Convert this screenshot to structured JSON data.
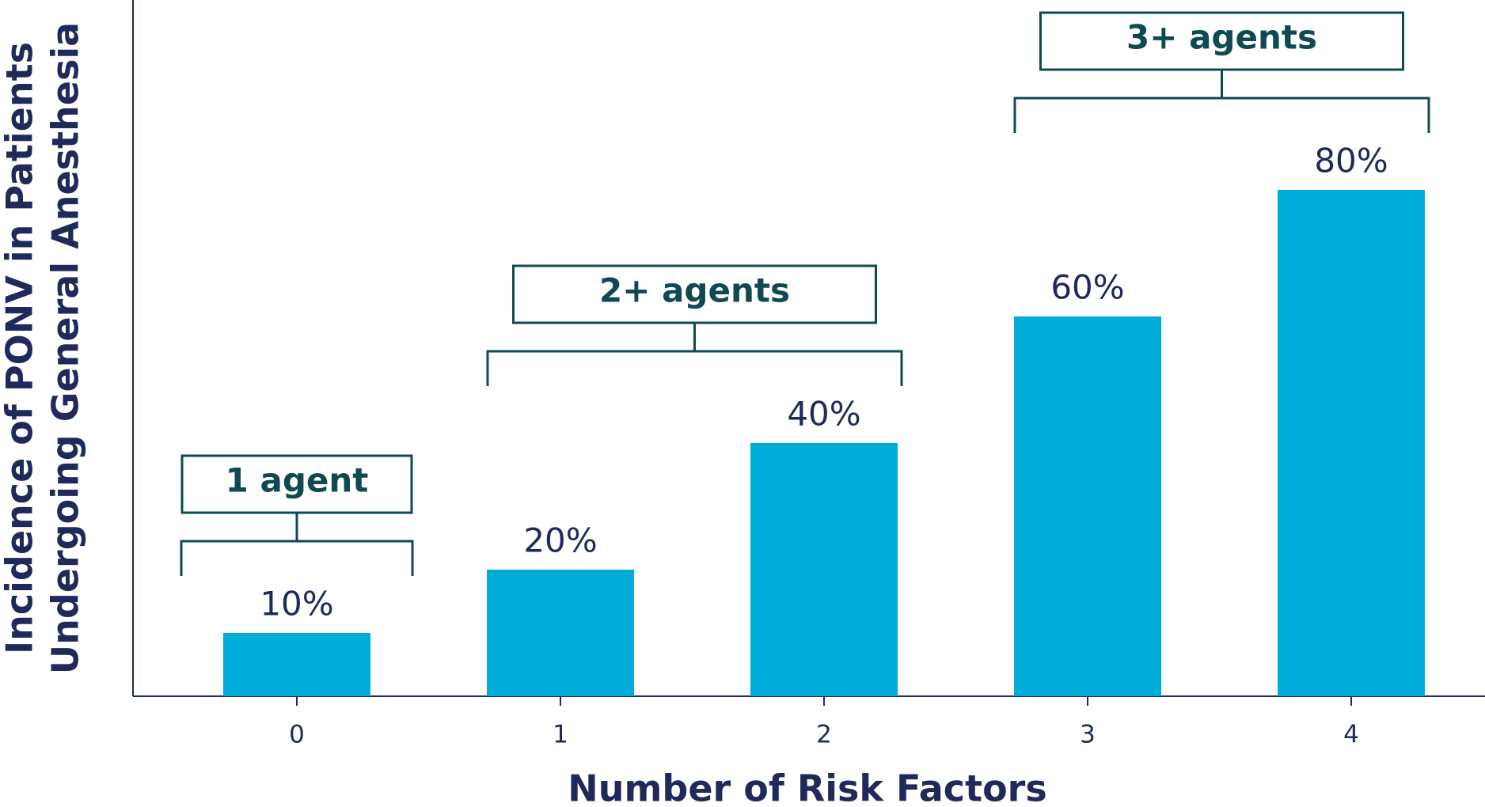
{
  "chart_data": {
    "type": "bar",
    "x_label": "Number of Risk Factors",
    "y_label": [
      "Incidence of PONV in Patients",
      "Undergoing General Anesthesia"
    ],
    "categories": [
      "0",
      "1",
      "2",
      "3",
      "4"
    ],
    "values": [
      10,
      20,
      40,
      60,
      80
    ],
    "value_labels": [
      "10%",
      "20%",
      "40%",
      "60%",
      "80%"
    ],
    "color": "#00acd8",
    "ylim": [
      0,
      110
    ],
    "annotations": [
      {
        "text": "1 agent",
        "from": "0",
        "to": "0"
      },
      {
        "text": "2+ agents",
        "from": "1",
        "to": "2"
      },
      {
        "text": "3+ agents",
        "from": "3",
        "to": "4"
      }
    ]
  }
}
